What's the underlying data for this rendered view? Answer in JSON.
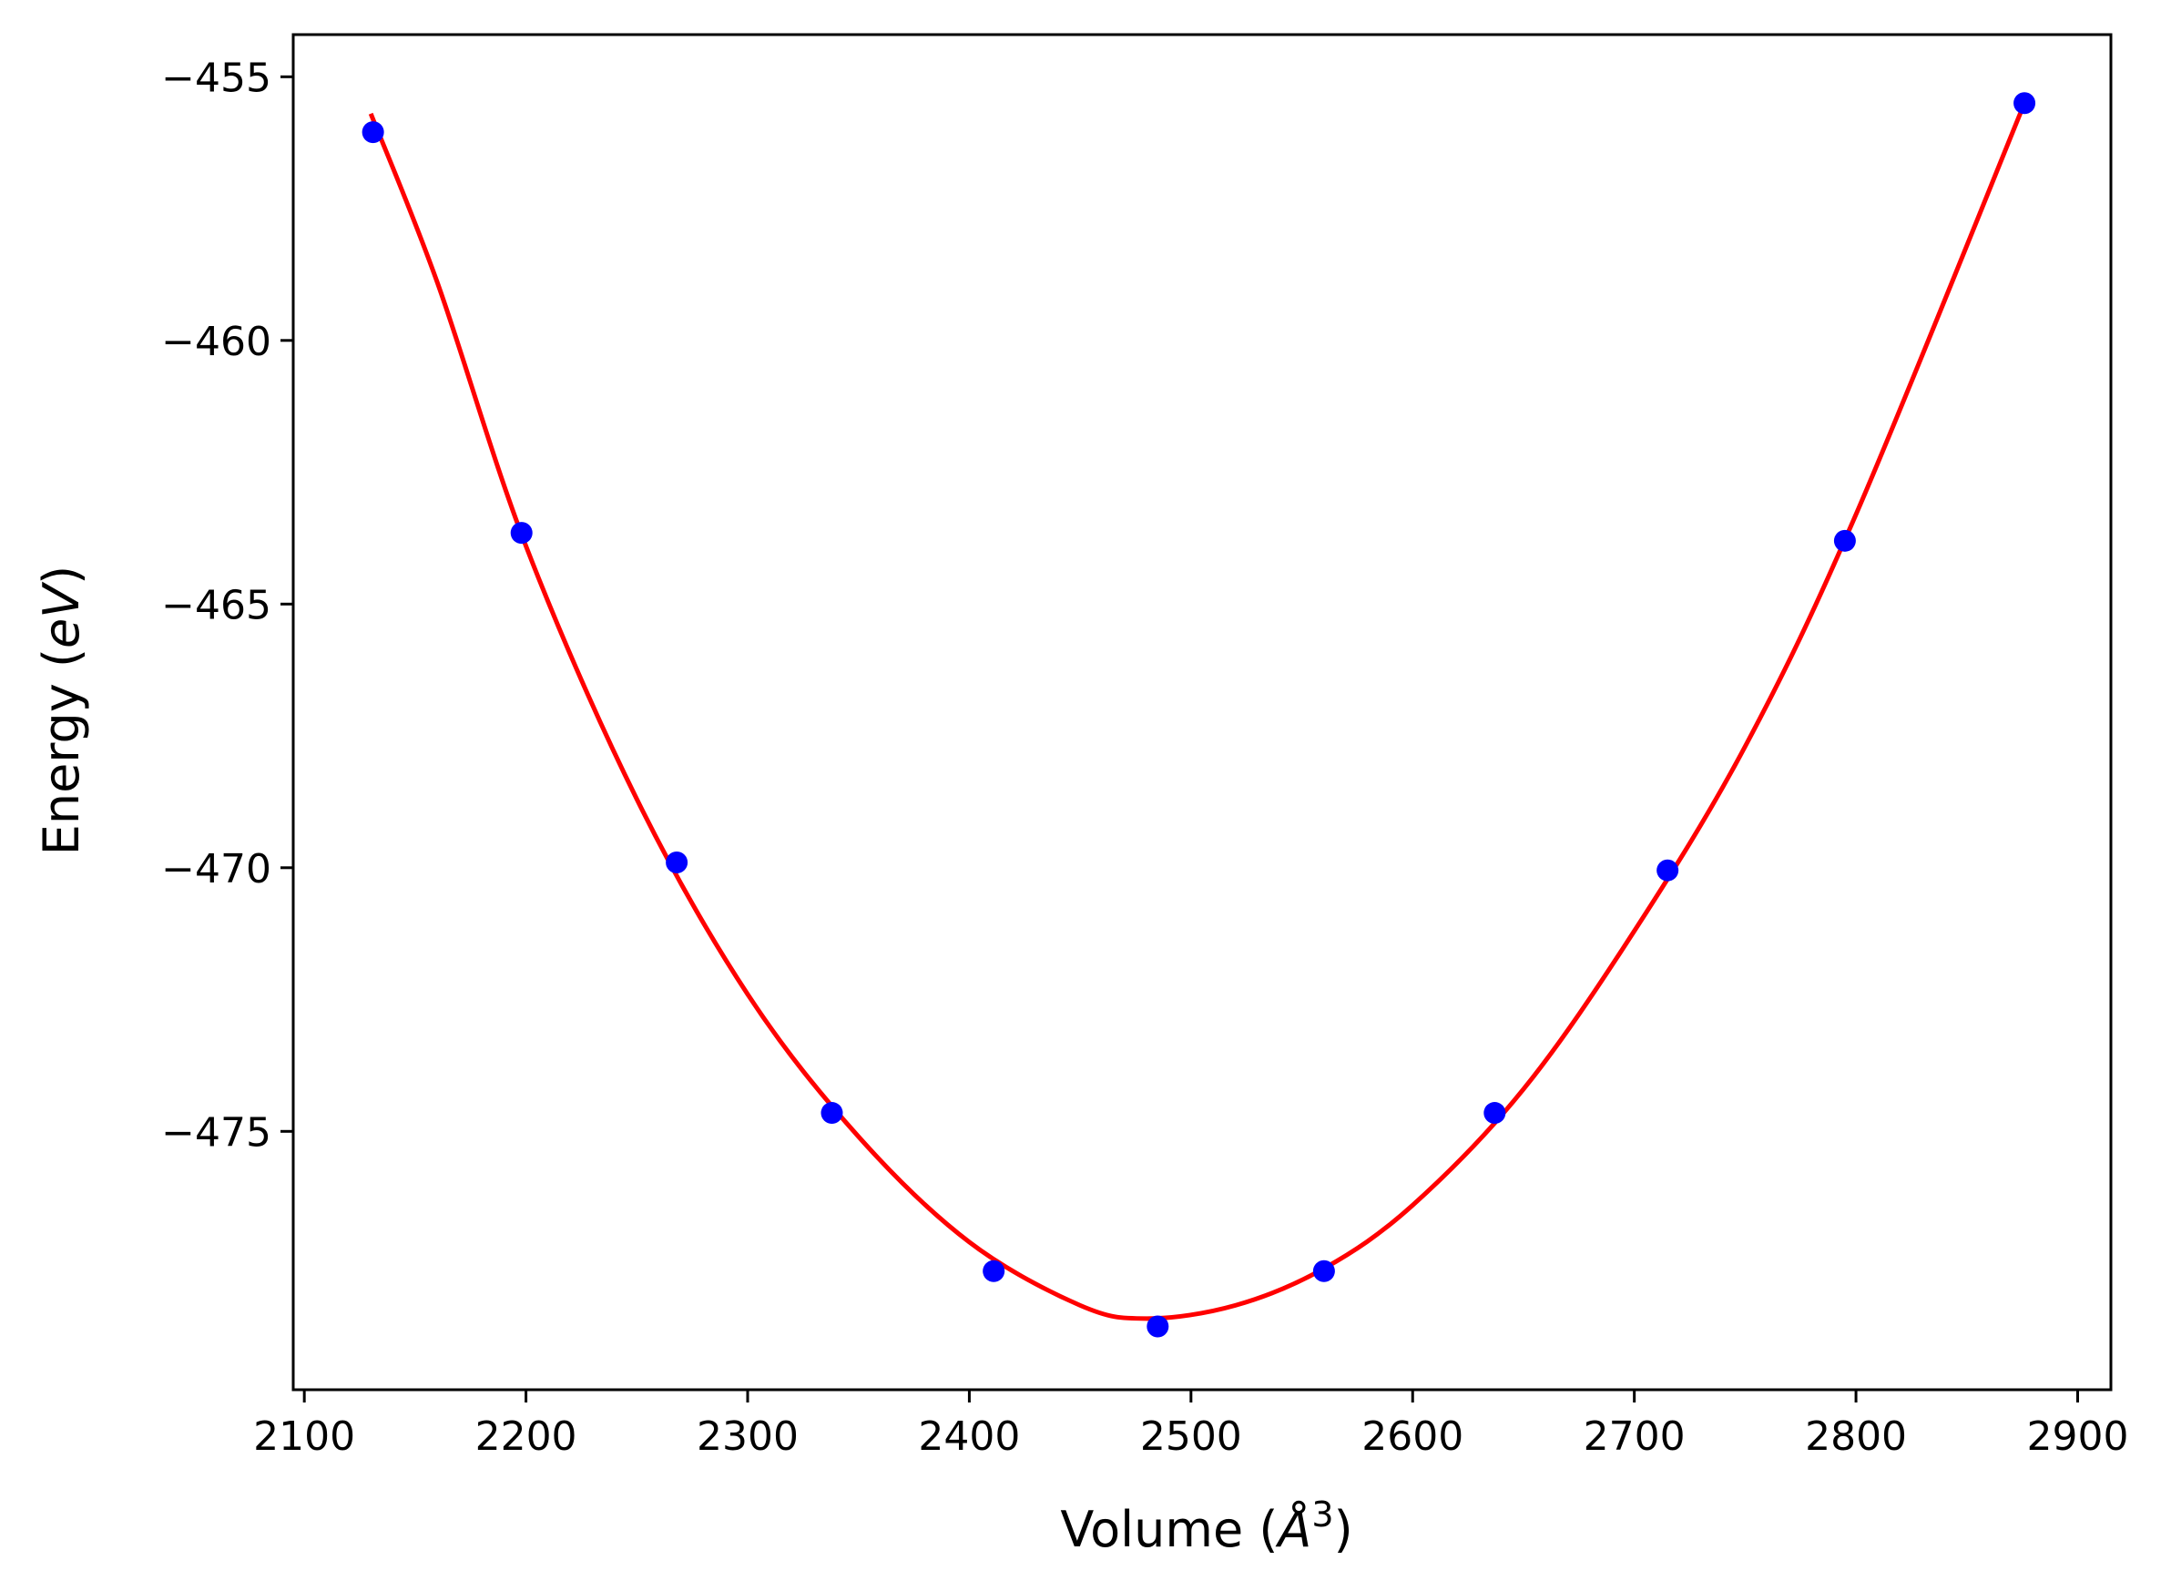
{
  "chart_data": {
    "type": "scatter",
    "xlabel": {
      "prefix": "Volume (",
      "var": "Å",
      "sup": "3",
      "suffix": ")"
    },
    "ylabel": {
      "prefix": "Energy (",
      "var": "eV",
      "suffix": ")"
    },
    "xlim": [
      2095,
      2915
    ],
    "ylim": [
      -479.9,
      -454.2
    ],
    "xticks": [
      2100,
      2200,
      2300,
      2400,
      2500,
      2600,
      2700,
      2800,
      2900
    ],
    "yticks": [
      -455,
      -460,
      -465,
      -470,
      -475
    ],
    "ytick_labels": [
      "−455",
      "−460",
      "−465",
      "−470",
      "−475"
    ],
    "grid": false,
    "series": [
      {
        "kind": "points",
        "color": "#0000ff",
        "x": [
          2131,
          2198,
          2268,
          2338,
          2411,
          2485,
          2560,
          2637,
          2715,
          2795,
          2876
        ],
        "y": [
          -456.05,
          -463.65,
          -469.9,
          -474.65,
          -477.65,
          -478.7,
          -477.65,
          -474.65,
          -470.05,
          -463.8,
          -455.5
        ]
      },
      {
        "kind": "fit-curve",
        "color": "#ff0000",
        "x": [
          2130,
          2160,
          2200,
          2250,
          2300,
          2350,
          2400,
          2450,
          2480,
          2520,
          2560,
          2600,
          2650,
          2700,
          2750,
          2800,
          2876
        ],
        "y": [
          -455.7,
          -458.9,
          -463.9,
          -468.7,
          -472.4,
          -475.1,
          -477.1,
          -478.3,
          -478.55,
          -478.3,
          -477.6,
          -476.4,
          -474.2,
          -471.2,
          -467.7,
          -463.3,
          -455.5
        ]
      }
    ]
  }
}
